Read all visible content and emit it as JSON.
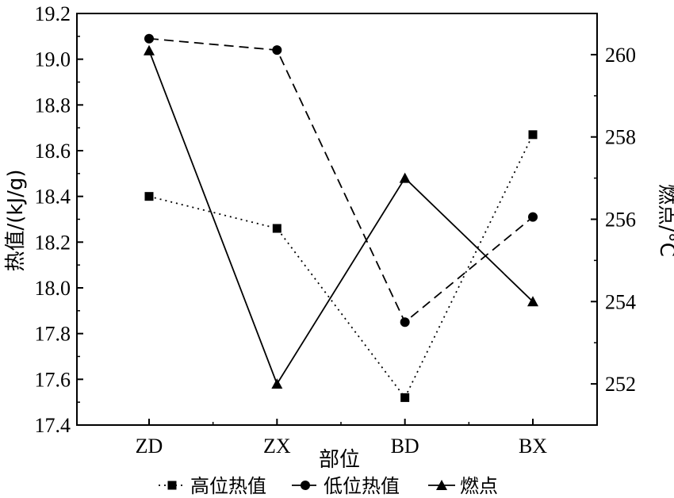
{
  "chart_data": {
    "type": "line",
    "categories": [
      "ZD",
      "ZX",
      "BD",
      "BX"
    ],
    "xlabel": "部位",
    "ylabel": "热值/(kJ/g)",
    "y2label": "燃点/°C",
    "ylim": [
      17.4,
      19.2
    ],
    "yticks": [
      "17.4",
      "17.6",
      "17.8",
      "18.0",
      "18.2",
      "18.4",
      "18.6",
      "18.8",
      "19.0",
      "19.2"
    ],
    "y2lim": [
      251,
      261
    ],
    "y2ticks": [
      "252",
      "254",
      "256",
      "258",
      "260"
    ],
    "series": [
      {
        "name": "高位热值",
        "axis": "left",
        "marker": "square",
        "dash": "dotted",
        "values": [
          18.4,
          18.26,
          17.52,
          18.67
        ]
      },
      {
        "name": "低位热值",
        "axis": "left",
        "marker": "circle",
        "dash": "dashed",
        "values": [
          19.09,
          19.04,
          17.85,
          18.31
        ]
      },
      {
        "name": "燃点",
        "axis": "right",
        "marker": "triangle",
        "dash": "solid",
        "values": [
          260.1,
          252.0,
          257.0,
          254.0
        ]
      }
    ],
    "legend_position": "bottom",
    "grid": false
  }
}
